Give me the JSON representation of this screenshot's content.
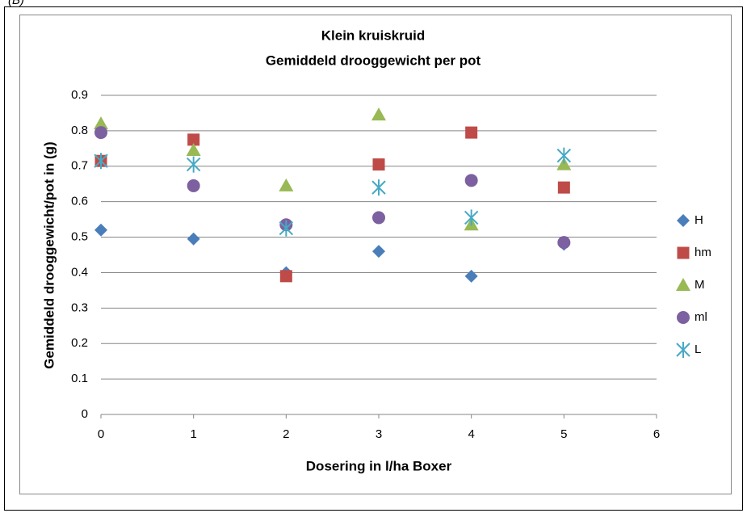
{
  "panel_label": "(B)",
  "chart_data": {
    "type": "scatter",
    "title": "Klein kruiskruid",
    "subtitle": "Gemiddeld drooggewicht per pot",
    "x_label": "Dosering in l/ha Boxer",
    "y_label": "Gemiddeld drooggewicht/pot in (g)",
    "x": [
      0,
      1,
      2,
      3,
      4,
      5
    ],
    "xlim": [
      0,
      6
    ],
    "xticks": [
      0,
      1,
      2,
      3,
      4,
      5,
      6
    ],
    "ylim": [
      0,
      0.9
    ],
    "yticks": [
      0,
      0.1,
      0.2,
      0.3,
      0.4,
      0.5,
      0.6,
      0.7,
      0.8,
      0.9
    ],
    "grid": true,
    "legend": "right",
    "series": [
      {
        "name": "H",
        "color": "#4a7ebb",
        "marker": "diamond",
        "values": [
          0.52,
          0.495,
          0.4,
          0.46,
          0.39,
          0.48
        ]
      },
      {
        "name": "hm",
        "color": "#be4b48",
        "marker": "square",
        "values": [
          0.715,
          0.775,
          0.39,
          0.705,
          0.795,
          0.64
        ]
      },
      {
        "name": "M",
        "color": "#98b954",
        "marker": "triangle",
        "values": [
          0.82,
          0.745,
          0.645,
          0.845,
          0.535,
          0.705
        ]
      },
      {
        "name": "ml",
        "color": "#7d60a0",
        "marker": "circle",
        "values": [
          0.795,
          0.645,
          0.535,
          0.555,
          0.66,
          0.485
        ]
      },
      {
        "name": "L",
        "color": "#46aac5",
        "marker": "star",
        "values": [
          0.715,
          0.705,
          0.525,
          0.64,
          0.555,
          0.73
        ]
      }
    ]
  }
}
